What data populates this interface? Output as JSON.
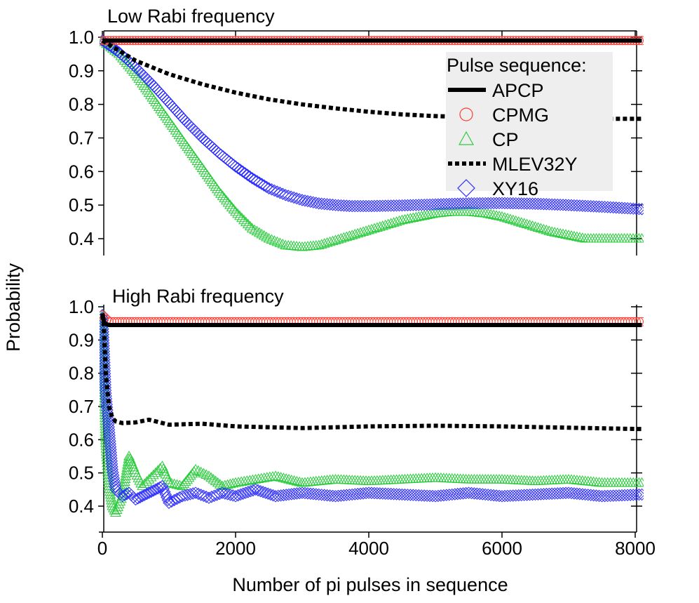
{
  "chart_data": [
    {
      "type": "line",
      "title": "Low Rabi frequency",
      "xlabel": "Number of pi pulses in sequence",
      "ylabel": "Probability",
      "xlim": [
        -50,
        8150
      ],
      "ylim": [
        0.35,
        1.02
      ],
      "yticks": [
        "0.4",
        "0.5",
        "0.6",
        "0.7",
        "0.8",
        "0.9",
        "1.0"
      ],
      "legend_title": "Pulse sequence:",
      "legend_position": "top-right",
      "series": [
        {
          "name": "APCP",
          "style": "solid",
          "color": "#000000",
          "x": [
            0,
            500,
            1000,
            2000,
            4000,
            6000,
            8100
          ],
          "y": [
            0.99,
            0.99,
            0.99,
            0.99,
            0.99,
            0.99,
            0.99
          ]
        },
        {
          "name": "CPMG",
          "style": "circle",
          "color": "#ff3b30",
          "x": [
            0,
            500,
            1000,
            2000,
            4000,
            6000,
            8100
          ],
          "y": [
            0.99,
            0.99,
            0.99,
            0.99,
            0.99,
            0.99,
            0.99
          ]
        },
        {
          "name": "CP",
          "style": "triangle",
          "color": "#2ecc40",
          "x": [
            0,
            250,
            500,
            750,
            1000,
            1250,
            1500,
            1750,
            2000,
            2250,
            2500,
            2750,
            3000,
            3250,
            3500,
            3750,
            4000,
            4250,
            4500,
            4750,
            5000,
            5250,
            5500,
            5750,
            6000,
            6250,
            6500,
            6750,
            7000,
            7250,
            7500,
            7750,
            8100
          ],
          "y": [
            0.99,
            0.95,
            0.89,
            0.82,
            0.75,
            0.68,
            0.61,
            0.54,
            0.48,
            0.43,
            0.4,
            0.38,
            0.375,
            0.38,
            0.395,
            0.41,
            0.425,
            0.44,
            0.455,
            0.465,
            0.475,
            0.48,
            0.48,
            0.475,
            0.465,
            0.45,
            0.435,
            0.42,
            0.41,
            0.4,
            0.4,
            0.4,
            0.4
          ]
        },
        {
          "name": "MLEV32Y",
          "style": "dotted",
          "color": "#000000",
          "x": [
            0,
            500,
            1000,
            1500,
            2000,
            2500,
            3000,
            3500,
            4000,
            4500,
            5000,
            5500,
            6000,
            6500,
            7000,
            7500,
            8100
          ],
          "y": [
            0.99,
            0.93,
            0.89,
            0.86,
            0.835,
            0.815,
            0.8,
            0.788,
            0.778,
            0.77,
            0.765,
            0.762,
            0.76,
            0.758,
            0.757,
            0.757,
            0.757
          ]
        },
        {
          "name": "XY16",
          "style": "diamond",
          "color": "#2b2bff",
          "x": [
            0,
            250,
            500,
            750,
            1000,
            1250,
            1500,
            1750,
            2000,
            2250,
            2500,
            2750,
            3000,
            3250,
            3500,
            3750,
            4000,
            4500,
            5000,
            5500,
            6000,
            6500,
            7000,
            7500,
            8100
          ],
          "y": [
            0.99,
            0.955,
            0.91,
            0.86,
            0.805,
            0.75,
            0.7,
            0.655,
            0.615,
            0.58,
            0.55,
            0.53,
            0.515,
            0.505,
            0.5,
            0.497,
            0.497,
            0.499,
            0.502,
            0.505,
            0.506,
            0.504,
            0.5,
            0.495,
            0.488
          ]
        }
      ]
    },
    {
      "type": "line",
      "title": "High Rabi frequency",
      "xlabel": "Number of pi pulses in sequence",
      "ylabel": "Probability",
      "xlim": [
        -50,
        8150
      ],
      "ylim": [
        0.35,
        1.01
      ],
      "xticks": [
        "0",
        "2000",
        "4000",
        "6000",
        "8000"
      ],
      "yticks": [
        "0.4",
        "0.5",
        "0.6",
        "0.7",
        "0.8",
        "0.9",
        "1.0"
      ],
      "series": [
        {
          "name": "APCP",
          "style": "solid",
          "color": "#000000",
          "x": [
            0,
            30,
            100,
            500,
            1000,
            2000,
            4000,
            6000,
            8100
          ],
          "y": [
            0.98,
            0.95,
            0.945,
            0.945,
            0.945,
            0.945,
            0.945,
            0.945,
            0.945
          ]
        },
        {
          "name": "CPMG",
          "style": "circle",
          "color": "#ff3b30",
          "x": [
            0,
            100,
            500,
            1000,
            2000,
            4000,
            6000,
            8100
          ],
          "y": [
            0.975,
            0.955,
            0.955,
            0.955,
            0.955,
            0.955,
            0.955,
            0.955
          ]
        },
        {
          "name": "CP",
          "style": "triangle",
          "color": "#2ecc40",
          "x": [
            0,
            50,
            100,
            150,
            200,
            300,
            400,
            500,
            600,
            700,
            800,
            900,
            1000,
            1200,
            1400,
            1600,
            1800,
            2000,
            2300,
            2600,
            3000,
            3500,
            4000,
            4500,
            5000,
            5500,
            6000,
            6500,
            7000,
            7500,
            8100
          ],
          "y": [
            0.975,
            0.59,
            0.46,
            0.4,
            0.38,
            0.43,
            0.55,
            0.5,
            0.46,
            0.48,
            0.5,
            0.52,
            0.47,
            0.46,
            0.51,
            0.49,
            0.46,
            0.47,
            0.48,
            0.49,
            0.47,
            0.48,
            0.475,
            0.48,
            0.485,
            0.48,
            0.48,
            0.475,
            0.48,
            0.47,
            0.47
          ]
        },
        {
          "name": "MLEV32Y",
          "style": "dotted",
          "color": "#000000",
          "x": [
            0,
            20,
            50,
            100,
            150,
            200,
            300,
            500,
            700,
            1000,
            1500,
            2000,
            3000,
            4000,
            5000,
            6000,
            7000,
            8100
          ],
          "y": [
            0.975,
            0.95,
            0.8,
            0.7,
            0.665,
            0.655,
            0.65,
            0.652,
            0.66,
            0.645,
            0.648,
            0.64,
            0.635,
            0.64,
            0.642,
            0.64,
            0.636,
            0.632
          ]
        },
        {
          "name": "XY16",
          "style": "diamond",
          "color": "#2b2bff",
          "x": [
            0,
            50,
            100,
            150,
            200,
            300,
            400,
            500,
            600,
            700,
            800,
            900,
            1000,
            1200,
            1400,
            1600,
            1800,
            2000,
            2300,
            2600,
            3000,
            3500,
            4000,
            4500,
            5000,
            5500,
            6000,
            6500,
            7000,
            7500,
            8100
          ],
          "y": [
            0.975,
            0.74,
            0.63,
            0.51,
            0.45,
            0.43,
            0.44,
            0.42,
            0.43,
            0.44,
            0.45,
            0.46,
            0.41,
            0.43,
            0.44,
            0.425,
            0.44,
            0.43,
            0.45,
            0.43,
            0.44,
            0.43,
            0.44,
            0.435,
            0.43,
            0.44,
            0.43,
            0.435,
            0.44,
            0.43,
            0.435
          ]
        }
      ]
    }
  ]
}
